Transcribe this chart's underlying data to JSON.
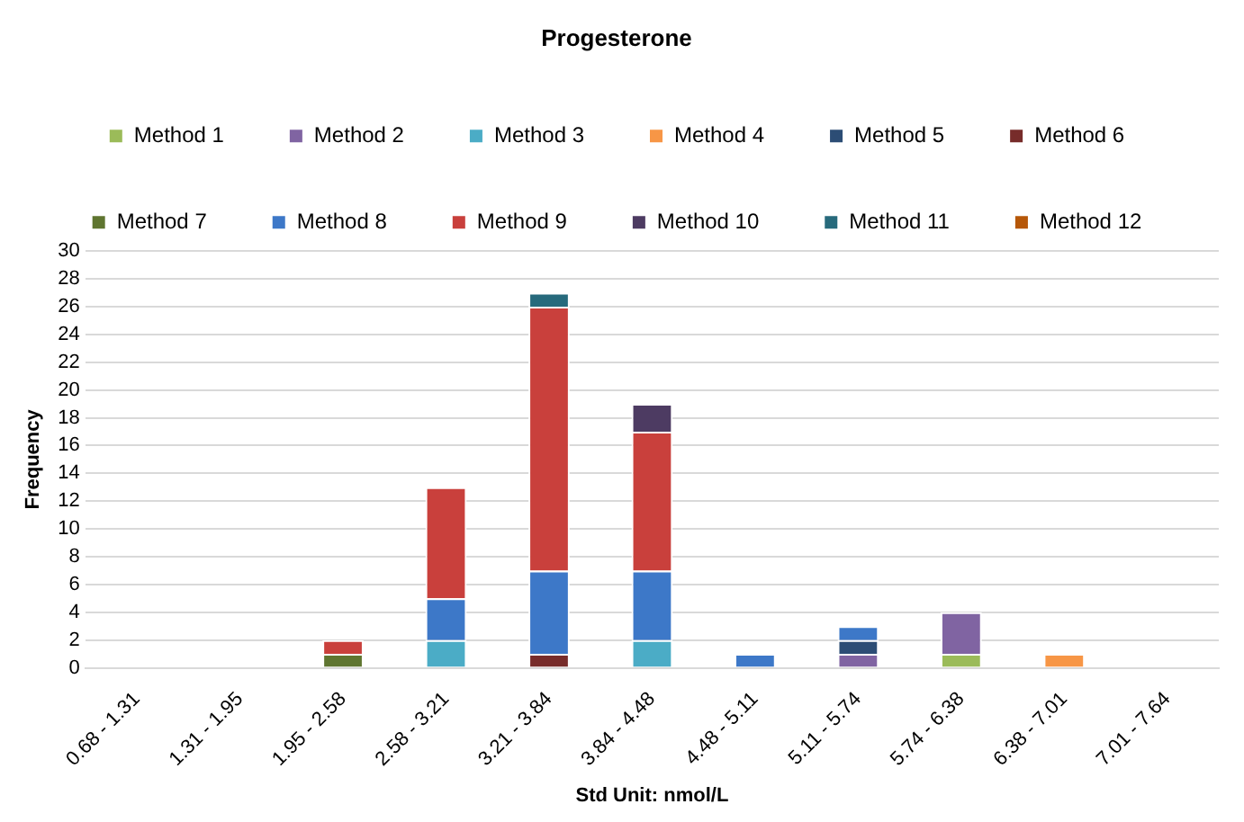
{
  "chart_data": {
    "type": "bar",
    "stacked": true,
    "title": "Progesterone",
    "xlabel": "Std Unit: nmol/L",
    "ylabel": "Frequency",
    "categories": [
      "0.68 - 1.31",
      "1.31 - 1.95",
      "1.95 - 2.58",
      "2.58 - 3.21",
      "3.21 - 3.84",
      "3.84 - 4.48",
      "4.48 - 5.11",
      "5.11 - 5.74",
      "5.74 - 6.38",
      "6.38 - 7.01",
      "7.01 - 7.64"
    ],
    "ylim": [
      0,
      30
    ],
    "yticks": [
      0,
      2,
      4,
      6,
      8,
      10,
      12,
      14,
      16,
      18,
      20,
      22,
      24,
      26,
      28,
      30
    ],
    "grid": "y",
    "legend": "top",
    "series": [
      {
        "name": "Method 1",
        "color": "#9bbb59",
        "values": [
          null,
          null,
          null,
          null,
          null,
          null,
          null,
          null,
          1,
          null,
          null
        ]
      },
      {
        "name": "Method 2",
        "color": "#8064a2",
        "values": [
          null,
          null,
          null,
          null,
          null,
          null,
          null,
          1,
          3,
          null,
          null
        ]
      },
      {
        "name": "Method 3",
        "color": "#4bacc6",
        "values": [
          null,
          null,
          null,
          2,
          null,
          2,
          null,
          null,
          null,
          null,
          null
        ]
      },
      {
        "name": "Method 4",
        "color": "#f79646",
        "values": [
          null,
          null,
          null,
          null,
          null,
          null,
          null,
          null,
          null,
          1,
          null
        ]
      },
      {
        "name": "Method 5",
        "color": "#2c4d75",
        "values": [
          null,
          null,
          null,
          null,
          null,
          null,
          null,
          1,
          null,
          null,
          null
        ]
      },
      {
        "name": "Method 6",
        "color": "#772c2a",
        "values": [
          null,
          null,
          null,
          null,
          1,
          null,
          null,
          null,
          null,
          null,
          null
        ]
      },
      {
        "name": "Method 7",
        "color": "#5f7530",
        "values": [
          null,
          null,
          1,
          null,
          null,
          null,
          null,
          null,
          null,
          null,
          null
        ]
      },
      {
        "name": "Method 8",
        "color": "#3d78c8",
        "values": [
          null,
          null,
          null,
          3,
          6,
          5,
          1,
          1,
          null,
          null,
          null
        ]
      },
      {
        "name": "Method 9",
        "color": "#c9403c",
        "values": [
          null,
          null,
          1,
          8,
          19,
          10,
          null,
          null,
          null,
          null,
          null
        ]
      },
      {
        "name": "Method 10",
        "color": "#4d3b62",
        "values": [
          null,
          null,
          null,
          null,
          null,
          2,
          null,
          null,
          null,
          null,
          null
        ]
      },
      {
        "name": "Method 11",
        "color": "#276a7c",
        "values": [
          null,
          null,
          null,
          null,
          1,
          null,
          null,
          null,
          null,
          null,
          null
        ]
      },
      {
        "name": "Method 12",
        "color": "#b65708",
        "values": [
          null,
          null,
          null,
          null,
          null,
          null,
          null,
          null,
          null,
          null,
          null
        ]
      }
    ]
  }
}
